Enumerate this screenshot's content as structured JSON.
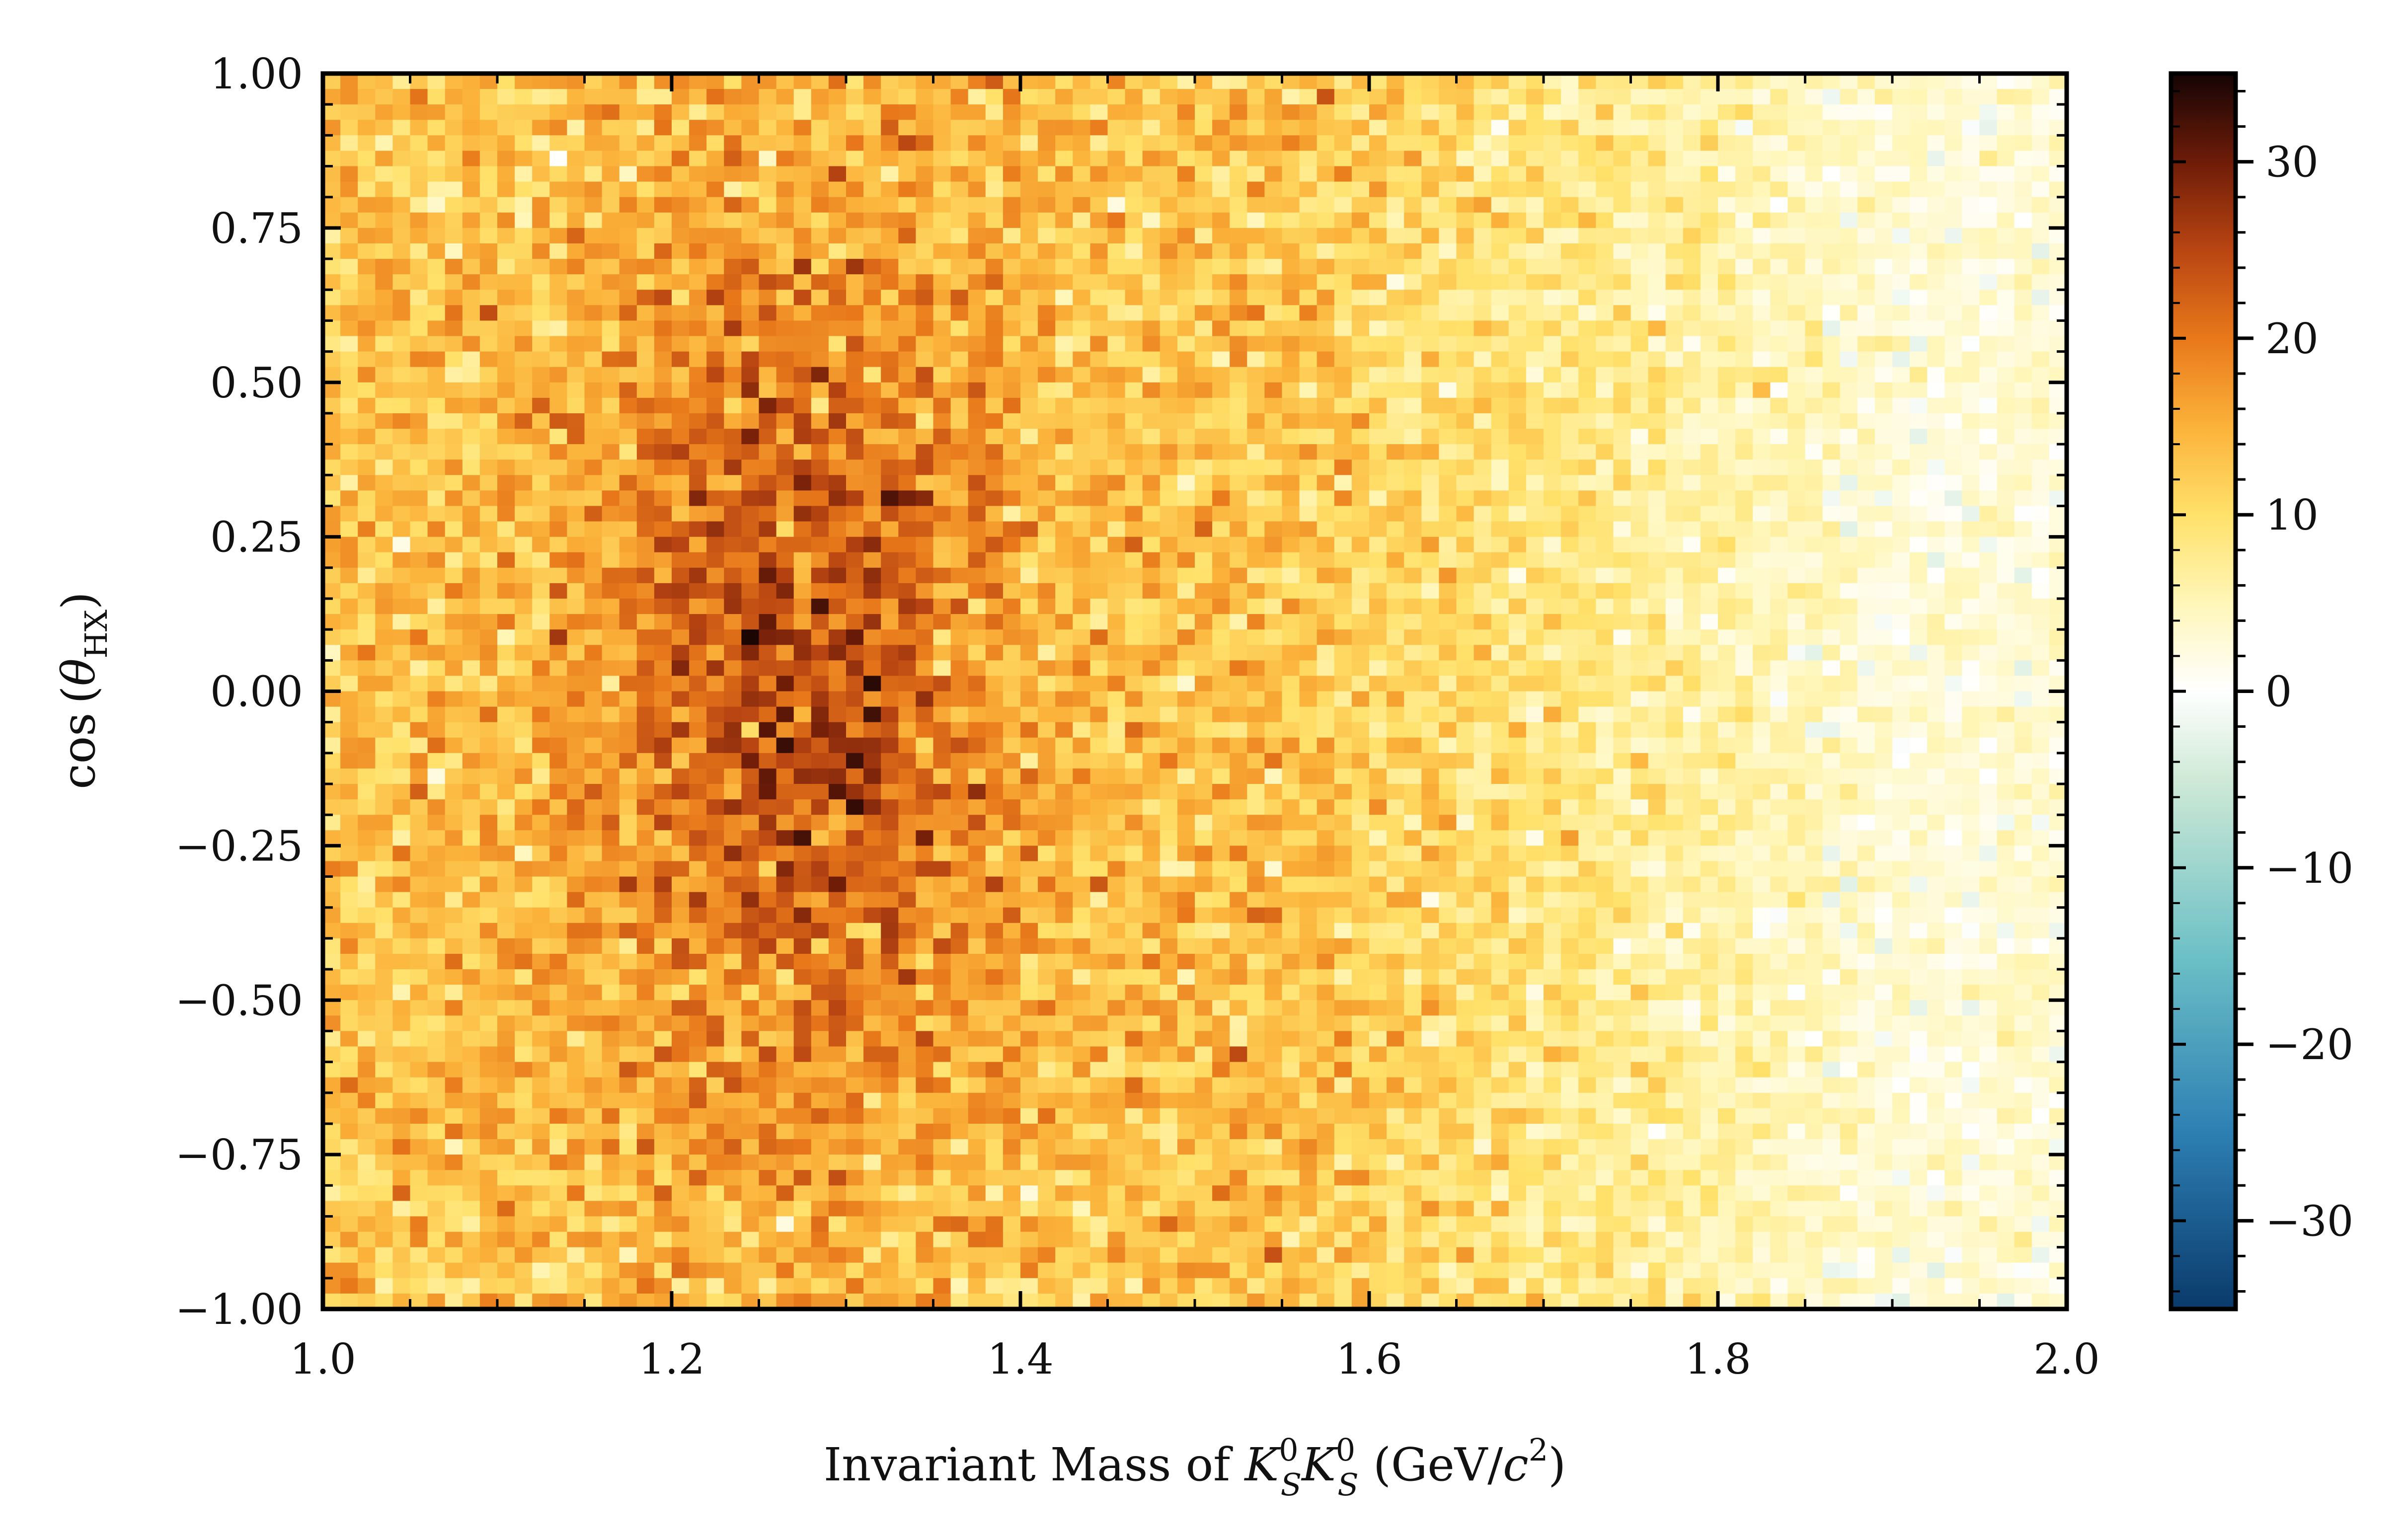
{
  "chart_data": {
    "type": "heatmap",
    "title": "",
    "xlabel": {
      "prefix": "Invariant Mass of ",
      "K1": "K",
      "K1_sup": "0",
      "K1_sub": "S",
      "K2": "K",
      "K2_sup": "0",
      "K2_sub": "S",
      "units_open": " (GeV/",
      "units_c": "c",
      "units_sup": "2",
      "units_close": ")"
    },
    "ylabel": {
      "func": "cos",
      "open": "(",
      "theta": "θ",
      "sub": "HX",
      "close": ")"
    },
    "xlim": [
      1.0,
      2.0
    ],
    "ylim": [
      -1.0,
      1.0
    ],
    "x_ticks": [
      "1.0",
      "1.2",
      "1.4",
      "1.6",
      "1.8",
      "2.0"
    ],
    "y_ticks": [
      "−1.00",
      "−0.75",
      "−0.50",
      "−0.25",
      "0.00",
      "0.25",
      "0.50",
      "0.75",
      "1.00"
    ],
    "x_bins": 100,
    "y_bins": 80,
    "colorbar": {
      "vmin": -35,
      "vmax": 35,
      "ticks": [
        "−30",
        "−20",
        "−10",
        "0",
        "10",
        "20",
        "30"
      ],
      "tick_values": [
        -30,
        -20,
        -10,
        0,
        10,
        20,
        30
      ],
      "colormap": [
        [
          -35,
          "#0a3a6b"
        ],
        [
          -25,
          "#2d7fb3"
        ],
        [
          -15,
          "#6cc0c6"
        ],
        [
          -5,
          "#cfe9d6"
        ],
        [
          0,
          "#ffffff"
        ],
        [
          5,
          "#fff6b8"
        ],
        [
          10,
          "#ffe16a"
        ],
        [
          15,
          "#fbb23a"
        ],
        [
          20,
          "#e8781a"
        ],
        [
          25,
          "#b94512"
        ],
        [
          30,
          "#6e1c08"
        ],
        [
          35,
          "#150404"
        ]
      ]
    },
    "counts_model": {
      "description_of_shape": "counts peak around mass 1.27, |cos| near 0; decay toward 2.0",
      "peak_mass": 1.27,
      "peak_value": 24,
      "baseline_low_mass": 13,
      "high_mass_value": 3
    }
  }
}
